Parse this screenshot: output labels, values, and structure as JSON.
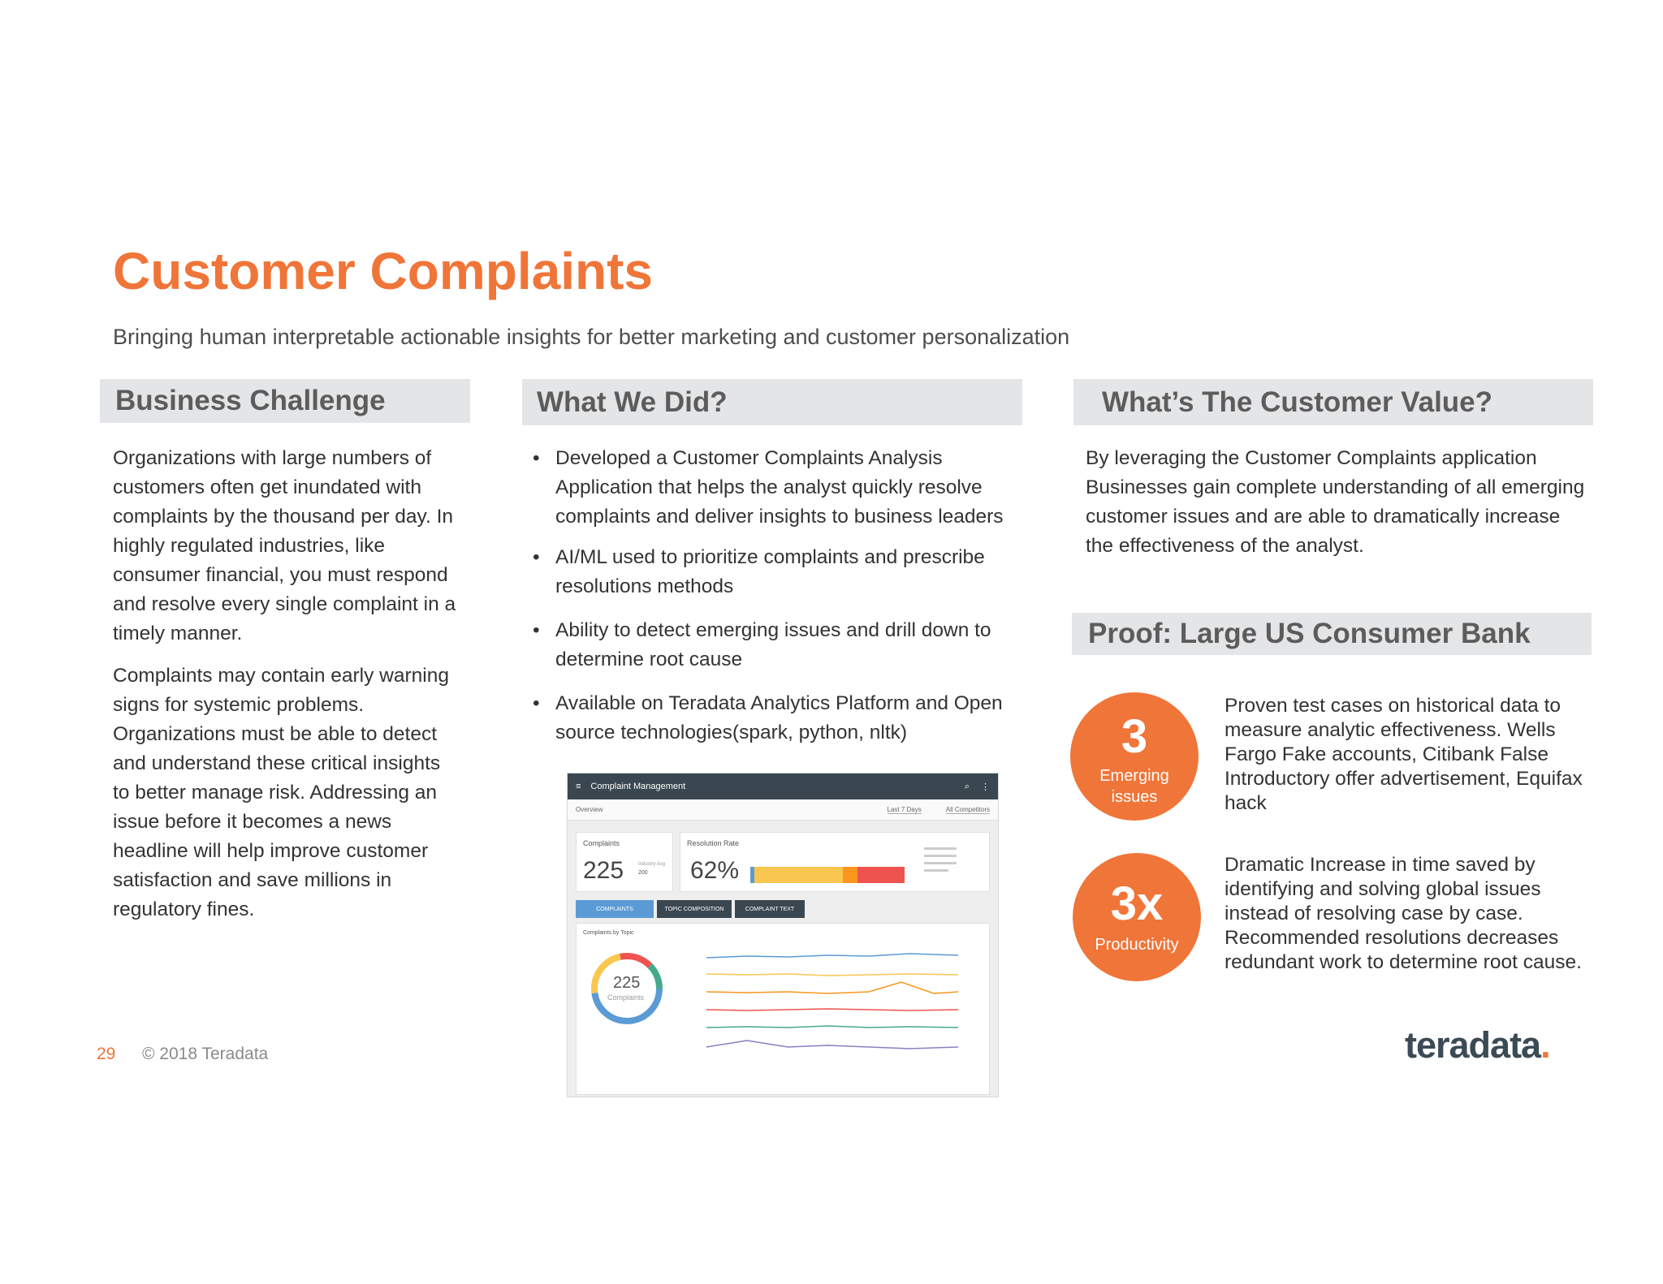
{
  "header": {
    "title": "Customer Complaints",
    "subtitle": "Bringing human interpretable actionable insights for better marketing and customer personalization"
  },
  "business_challenge": {
    "heading": "Business Challenge",
    "paragraphs": [
      "Organizations with large numbers of customers often get inundated with complaints by the thousand per day. In highly regulated industries, like consumer financial, you must respond and resolve every single complaint in a timely manner.",
      "Complaints may contain early warning signs for systemic problems. Organizations must be able to detect and understand these critical insights to better manage risk. Addressing an issue before it becomes a news headline will help improve customer satisfaction and save millions in regulatory fines."
    ]
  },
  "what_we_did": {
    "heading": "What We Did?",
    "bullet": "•",
    "items": [
      "Developed a Customer Complaints Analysis Application that helps the analyst quickly resolve complaints and deliver insights to business leaders",
      "AI/ML used to prioritize complaints and prescribe resolutions methods",
      "Ability to detect emerging issues and drill down to determine root cause",
      "Available on Teradata Analytics Platform and Open source technologies(spark, python, nltk)"
    ]
  },
  "customer_value": {
    "heading": "What’s The Customer Value?",
    "text": "By leveraging the Customer Complaints application Businesses gain complete understanding of all emerging customer issues and are able to dramatically increase the effectiveness of the analyst."
  },
  "proof": {
    "heading": "Proof: Large US Consumer Bank",
    "items": [
      {
        "stat": "3",
        "stat_label": "Emerging issues",
        "text": "Proven test cases on historical data to measure analytic effectiveness. Wells Fargo Fake accounts, Citibank False Introductory offer advertisement, Equifax hack"
      },
      {
        "stat": "3x",
        "stat_label": "Productivity",
        "text": "Dramatic Increase in time saved by identifying and solving global issues instead of resolving case by case. Recommended resolutions decreases redundant work to determine root cause."
      }
    ]
  },
  "dashboard": {
    "app_title": "Complaint Management",
    "overview": "Overview",
    "filter1": "Last 7 Days",
    "filter2": "All Competitors",
    "complaints_label": "Complaints",
    "complaints_value": "225",
    "industry_avg_label": "Industry Avg",
    "industry_avg_value": "200",
    "resolution_label": "Resolution Rate",
    "resolution_value": "62%",
    "tabs": [
      "COMPLAINTS",
      "TOPIC COMPOSITION",
      "COMPLAINT TEXT"
    ],
    "by_topic_label": "Complaints by Topic",
    "donut_value": "225",
    "donut_label": "Complaints",
    "resolution_segments": [
      0.02,
      0.45,
      0.07,
      0.24
    ],
    "colors": {
      "blue": "#5b9bd5",
      "yellow": "#f9c74f",
      "orange": "#f8961e",
      "red": "#ef5350",
      "green": "#43aa8b",
      "purple": "#8e7cc3"
    }
  },
  "footer": {
    "page_number": "29",
    "copyright": "© 2018 Teradata",
    "logo_text": "teradata",
    "logo_dot": "."
  },
  "accent_color": "#f07538"
}
